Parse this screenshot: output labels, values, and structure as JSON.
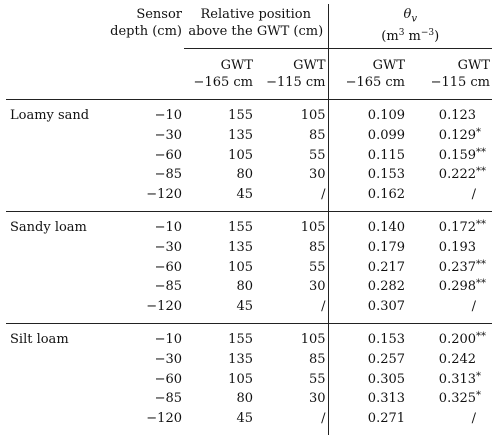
{
  "header": {
    "sensor_depth_l1": "Sensor",
    "sensor_depth_l2": "depth (cm)",
    "rel_pos_l1": "Relative position",
    "rel_pos_l2": "above the GWT (cm)",
    "theta_symbol": "θ",
    "theta_sub": "v",
    "theta_unit_a": "(m",
    "theta_unit_sup1": "3",
    "theta_unit_b": " m",
    "theta_unit_sup2": "−3",
    "theta_unit_c": ")",
    "gwt_label": "GWT",
    "gwt_165": "−165 cm",
    "gwt_115": "−115 cm"
  },
  "groups": [
    {
      "soil": "Loamy sand",
      "rows": [
        {
          "depth": "−10",
          "pos165": "155",
          "pos115": "105",
          "th165": "0.109",
          "th115": "0.123",
          "sig": ""
        },
        {
          "depth": "−30",
          "pos165": "135",
          "pos115": "85",
          "th165": "0.099",
          "th115": "0.129",
          "sig": "*"
        },
        {
          "depth": "−60",
          "pos165": "105",
          "pos115": "55",
          "th165": "0.115",
          "th115": "0.159",
          "sig": "**"
        },
        {
          "depth": "−85",
          "pos165": "80",
          "pos115": "30",
          "th165": "0.153",
          "th115": "0.222",
          "sig": "**"
        },
        {
          "depth": "−120",
          "pos165": "45",
          "pos115": "/",
          "th165": "0.162",
          "th115": "/",
          "sig": ""
        }
      ]
    },
    {
      "soil": "Sandy loam",
      "rows": [
        {
          "depth": "−10",
          "pos165": "155",
          "pos115": "105",
          "th165": "0.140",
          "th115": "0.172",
          "sig": "**"
        },
        {
          "depth": "−30",
          "pos165": "135",
          "pos115": "85",
          "th165": "0.179",
          "th115": "0.193",
          "sig": ""
        },
        {
          "depth": "−60",
          "pos165": "105",
          "pos115": "55",
          "th165": "0.217",
          "th115": "0.237",
          "sig": "**"
        },
        {
          "depth": "−85",
          "pos165": "80",
          "pos115": "30",
          "th165": "0.282",
          "th115": "0.298",
          "sig": "**"
        },
        {
          "depth": "−120",
          "pos165": "45",
          "pos115": "/",
          "th165": "0.307",
          "th115": "/",
          "sig": ""
        }
      ]
    },
    {
      "soil": "Silt loam",
      "rows": [
        {
          "depth": "−10",
          "pos165": "155",
          "pos115": "105",
          "th165": "0.153",
          "th115": "0.200",
          "sig": "**"
        },
        {
          "depth": "−30",
          "pos165": "135",
          "pos115": "85",
          "th165": "0.257",
          "th115": "0.242",
          "sig": ""
        },
        {
          "depth": "−60",
          "pos165": "105",
          "pos115": "55",
          "th165": "0.305",
          "th115": "0.313",
          "sig": "*"
        },
        {
          "depth": "−85",
          "pos165": "80",
          "pos115": "30",
          "th165": "0.313",
          "th115": "0.325",
          "sig": "*"
        },
        {
          "depth": "−120",
          "pos165": "45",
          "pos115": "/",
          "th165": "0.271",
          "th115": "/",
          "sig": ""
        }
      ]
    }
  ]
}
